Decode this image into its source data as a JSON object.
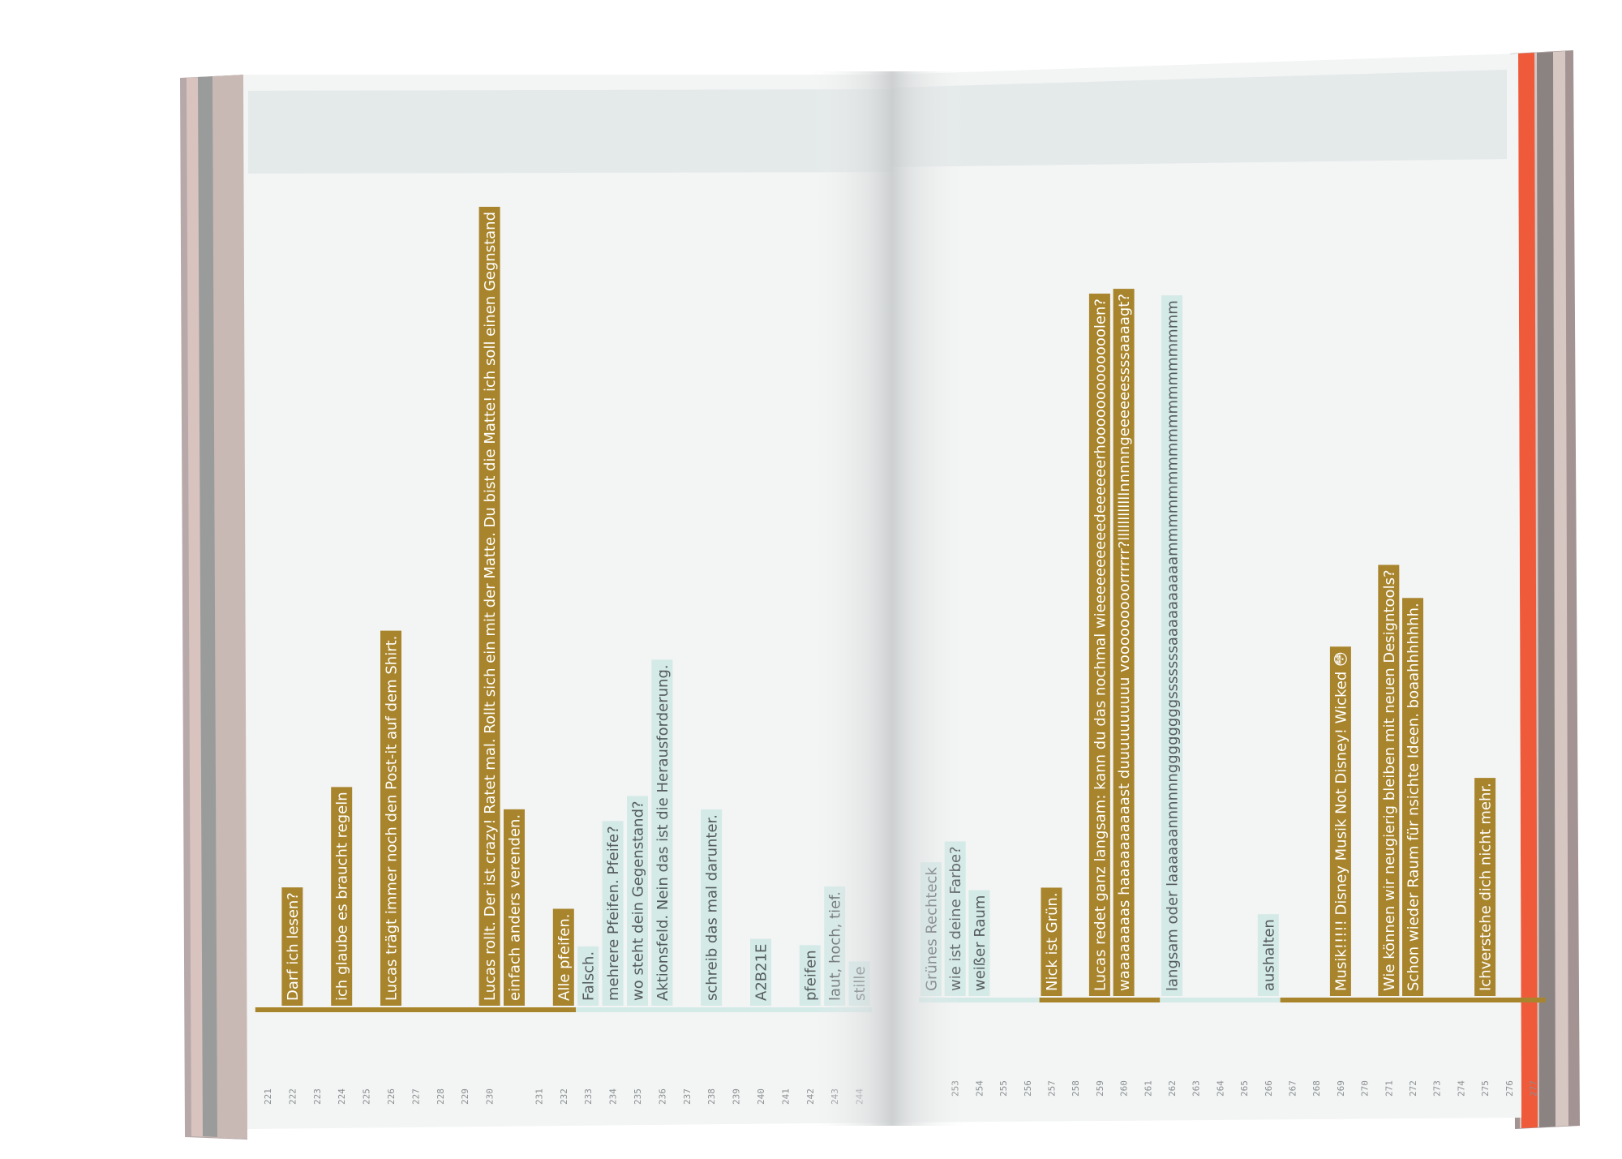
{
  "colors": {
    "gold": "#a8852d",
    "teal": "#d3eae7",
    "paper": "#f3f4f4",
    "paper_band": "#e4e9ea",
    "edge_red": "#ee5a3a",
    "page_edge_grey": "#9a9090"
  },
  "pages": [
    {
      "side": "left",
      "entries": [
        {
          "n": "221",
          "text": "",
          "style": "gold"
        },
        {
          "n": "222",
          "text": "Darf ich lesen?",
          "style": "gold"
        },
        {
          "n": "223",
          "text": "",
          "style": "gold"
        },
        {
          "n": "224",
          "text": "ich glaube es braucht regeln",
          "style": "gold"
        },
        {
          "n": "225",
          "text": "",
          "style": "gold"
        },
        {
          "n": "226",
          "text": "Lucas trägt immer noch den Post-it auf dem Shirt.",
          "style": "gold"
        },
        {
          "n": "227",
          "text": "",
          "style": "gold"
        },
        {
          "n": "228",
          "text": "",
          "style": "gold"
        },
        {
          "n": "229",
          "text": "",
          "style": "gold"
        },
        {
          "n": "230",
          "text": "Lucas rollt. Der ist crazy!  Ratet mal. Rollt sich ein mit der Matte. Du bist die Matte!  ich soll einen Gegnstand",
          "style": "gold"
        },
        {
          "n": "",
          "text": "einfach anders verenden.",
          "style": "gold"
        },
        {
          "n": "231",
          "text": "",
          "style": "gold"
        },
        {
          "n": "232",
          "text": "Alle pfeifen.",
          "style": "gold"
        },
        {
          "n": "233",
          "text": "Falsch.",
          "style": "teal"
        },
        {
          "n": "234",
          "text": "mehrere Pfeifen. Pfeife?",
          "style": "teal"
        },
        {
          "n": "235",
          "text": "wo steht dein Gegenstand?",
          "style": "teal"
        },
        {
          "n": "236",
          "text": "Aktionsfeld. Nein das ist die Herausforderung.",
          "style": "teal"
        },
        {
          "n": "237",
          "text": "",
          "style": "teal"
        },
        {
          "n": "238",
          "text": "schreib das mal darunter.",
          "style": "teal"
        },
        {
          "n": "239",
          "text": "",
          "style": "teal"
        },
        {
          "n": "240",
          "text": "A2B21E",
          "style": "teal"
        },
        {
          "n": "241",
          "text": "",
          "style": "teal"
        },
        {
          "n": "242",
          "text": "pfeifen",
          "style": "teal"
        },
        {
          "n": "243",
          "text": "laut, hoch, tief.",
          "style": "teal"
        },
        {
          "n": "244",
          "text": "stille",
          "style": "teal"
        }
      ]
    },
    {
      "side": "right",
      "entries": [
        {
          "n": "",
          "text": "Grünes Rechteck",
          "style": "teal"
        },
        {
          "n": "253",
          "text": "wie ist deine Farbe?",
          "style": "teal"
        },
        {
          "n": "254",
          "text": "weißer Raum",
          "style": "teal"
        },
        {
          "n": "255",
          "text": "",
          "style": "teal"
        },
        {
          "n": "256",
          "text": "",
          "style": "teal"
        },
        {
          "n": "257",
          "text": "Nick ist Grün.",
          "style": "gold"
        },
        {
          "n": "258",
          "text": "",
          "style": "gold"
        },
        {
          "n": "259",
          "text": "Lucas redet ganz langsam: kann du das nochmal wieeeeeeeeeedeeeeeerhooooooooooooolen?",
          "style": "gold"
        },
        {
          "n": "260",
          "text": "waaaaaaaas haaaaaaaaaast duuuuuuuuuu vooooooooorrrrrr?llllllllllllnnnnngeeeeeessssaaaagt?",
          "style": "gold"
        },
        {
          "n": "261",
          "text": "",
          "style": "gold"
        },
        {
          "n": "262",
          "text": "langsam oder laaaaaannnnnnggggggggsssssssaaaaaaaaaammmmmmmmmmmmmmmmmm",
          "style": "teal"
        },
        {
          "n": "263",
          "text": "",
          "style": "teal"
        },
        {
          "n": "264",
          "text": "",
          "style": "teal"
        },
        {
          "n": "265",
          "text": "",
          "style": "teal"
        },
        {
          "n": "266",
          "text": "aushalten",
          "style": "teal"
        },
        {
          "n": "267",
          "text": "",
          "style": "gold"
        },
        {
          "n": "268",
          "text": "",
          "style": "gold"
        },
        {
          "n": "269",
          "text": "Musik!!!!! Disney Musik Not Disney! Wicked 😳",
          "style": "gold"
        },
        {
          "n": "270",
          "text": "",
          "style": "gold"
        },
        {
          "n": "271",
          "text": "Wie können wir neugierig bleiben mit neuen  Designtools?",
          "style": "gold"
        },
        {
          "n": "272",
          "text": "Schon wieder Raum für nsichte Ideen. boaahhhhhhh.",
          "style": "gold"
        },
        {
          "n": "273",
          "text": "",
          "style": "gold"
        },
        {
          "n": "274",
          "text": "",
          "style": "gold"
        },
        {
          "n": "275",
          "text": "Ichverstehe dich nicht mehr.",
          "style": "gold"
        },
        {
          "n": "276",
          "text": "",
          "style": "gold"
        },
        {
          "n": "277",
          "text": "",
          "style": "gold"
        }
      ]
    }
  ]
}
